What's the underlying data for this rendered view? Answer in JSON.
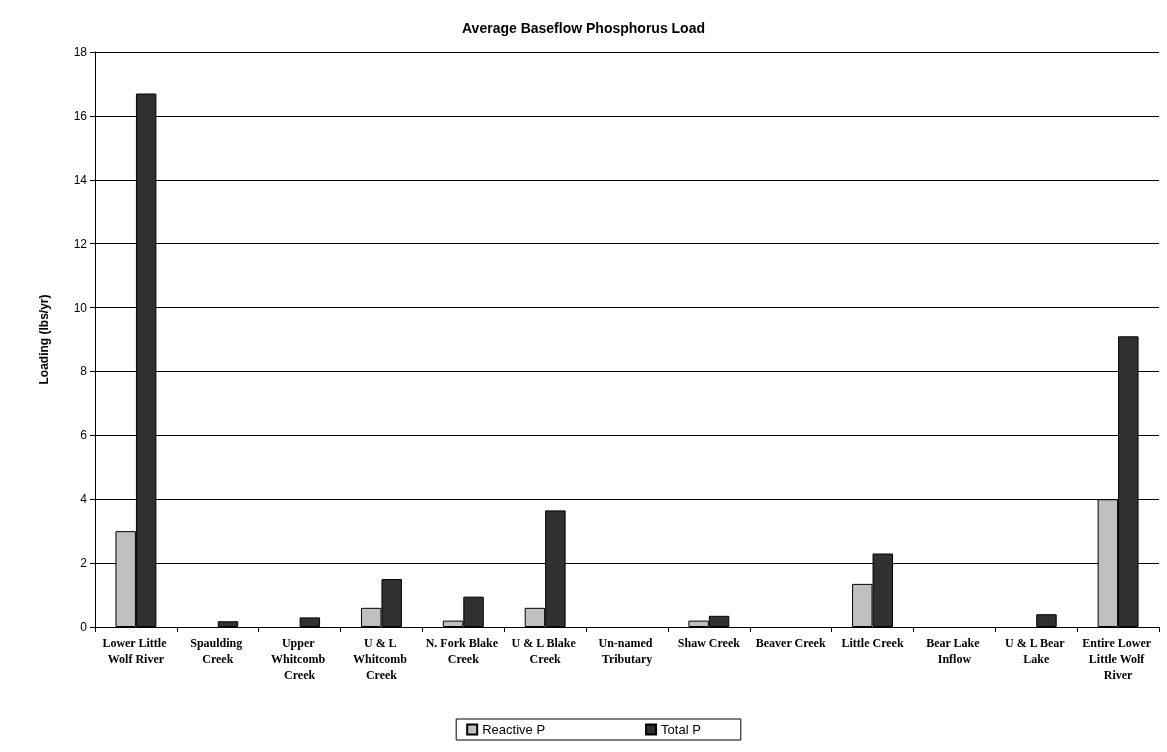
{
  "chart_data": {
    "type": "bar",
    "title": "Average Baseflow Phosphorus Load",
    "ylabel": "Loading (lbs/yr)",
    "categories": [
      "Lower Little Wolf River",
      "Spaulding Creek",
      "Upper Whitcomb Creek",
      "U & L Whitcomb Creek",
      "N. Fork Blake Creek",
      "U & L Blake Creek",
      "Un-named Tributary",
      "Shaw Creek",
      "Beaver Creek",
      "Little Creek",
      "Bear Lake Inflow",
      "U & L Bear Lake",
      "Entire Lower Little Wolf River"
    ],
    "series": [
      {
        "name": "Reactive P",
        "color": "#c0c0c0",
        "values": [
          3.0,
          null,
          null,
          0.6,
          0.2,
          0.6,
          0,
          0.2,
          0,
          1.35,
          0,
          null,
          4.0
        ]
      },
      {
        "name": "Total P",
        "color": "#303030",
        "values": [
          16.7,
          0.18,
          0.3,
          1.5,
          0.95,
          3.65,
          0,
          0.35,
          0,
          2.3,
          0,
          0.4,
          9.1
        ]
      }
    ],
    "ylim": [
      0,
      18
    ],
    "yticks": [
      0,
      2,
      4,
      6,
      8,
      10,
      12,
      14,
      16,
      18
    ],
    "grid": "y",
    "legend": "bottom"
  }
}
